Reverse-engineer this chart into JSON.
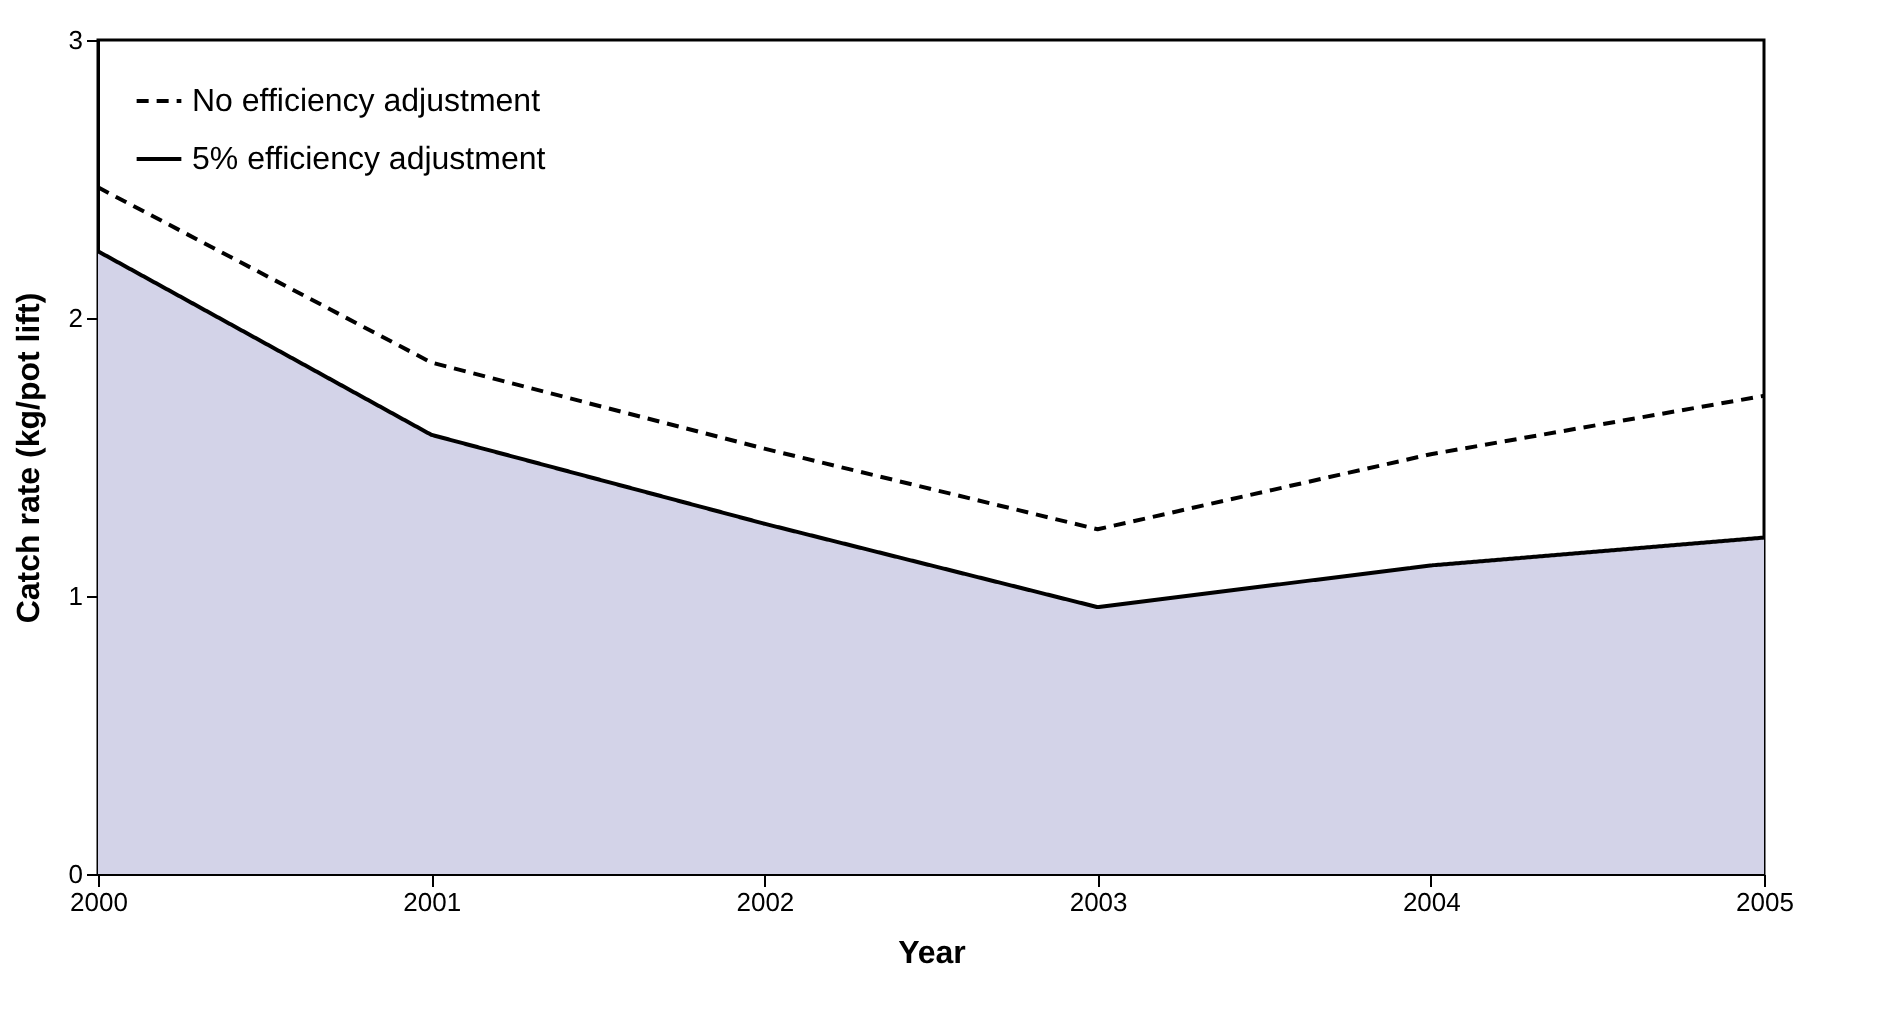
{
  "chart_data": {
    "type": "line",
    "xlabel": "Year",
    "ylabel": "Catch rate (kg/pot lift)",
    "x": [
      2000,
      2001,
      2002,
      2003,
      2004,
      2005
    ],
    "series": [
      {
        "name": "No efficiency adjustment",
        "type": "line",
        "color": "#000000",
        "line_style": "dashed",
        "values": [
          2.47,
          1.84,
          1.53,
          1.24,
          1.51,
          1.72
        ]
      },
      {
        "name": "5% efficiency adjustment",
        "type": "area",
        "color": "#d3d3e8",
        "line_style": "solid",
        "values": [
          2.24,
          1.58,
          1.26,
          0.96,
          1.11,
          1.21
        ]
      }
    ],
    "xlim": [
      2000,
      2005
    ],
    "xticks": [
      2000,
      2001,
      2002,
      2003,
      2004,
      2005
    ],
    "ylim": [
      0,
      3
    ],
    "yticks": [
      0,
      1,
      2,
      3
    ],
    "grid": false,
    "legend": "top left",
    "marker": "none"
  }
}
